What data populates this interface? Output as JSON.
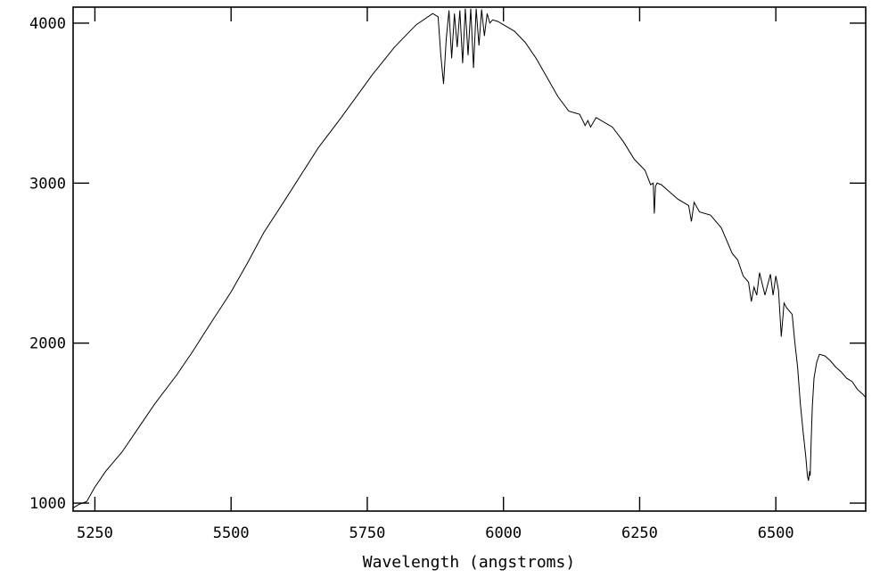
{
  "chart_data": {
    "type": "line",
    "title": "",
    "xlabel": "Wavelength (angstroms)",
    "ylabel": "",
    "xlim": [
      5210,
      6665
    ],
    "ylim": [
      950,
      4100
    ],
    "grid": false,
    "x_ticks": [
      5250,
      5500,
      5750,
      6000,
      6250,
      6500
    ],
    "y_ticks": [
      1000,
      2000,
      3000,
      4000
    ],
    "x_tick_labels": [
      "5250",
      "5500",
      "5750",
      "6000",
      "6250",
      "6500"
    ],
    "y_tick_labels": [
      "1000",
      "2000",
      "3000",
      "4000"
    ],
    "series": [
      {
        "x": [
          5210,
          5220,
          5235,
          5250,
          5270,
          5300,
          5330,
          5360,
          5400,
          5430,
          5460,
          5500,
          5530,
          5560,
          5600,
          5630,
          5660,
          5700,
          5730,
          5760,
          5800,
          5840,
          5870,
          5880,
          5885,
          5890,
          5895,
          5900,
          5905,
          5910,
          5915,
          5920,
          5925,
          5930,
          5935,
          5940,
          5945,
          5950,
          5955,
          5960,
          5965,
          5970,
          5975,
          5980,
          5990,
          6000,
          6020,
          6040,
          6060,
          6080,
          6100,
          6120,
          6140,
          6150,
          6155,
          6160,
          6170,
          6200,
          6220,
          6240,
          6260,
          6270,
          6275,
          6277,
          6279,
          6282,
          6290,
          6300,
          6320,
          6340,
          6345,
          6350,
          6360,
          6380,
          6400,
          6420,
          6430,
          6440,
          6450,
          6455,
          6460,
          6465,
          6470,
          6480,
          6490,
          6495,
          6500,
          6505,
          6510,
          6515,
          6520,
          6530,
          6535,
          6540,
          6545,
          6550,
          6555,
          6558,
          6560,
          6562,
          6563,
          6565,
          6567,
          6570,
          6575,
          6580,
          6590,
          6600,
          6610,
          6620,
          6630,
          6640,
          6650,
          6660,
          6665
        ],
        "y": [
          970,
          990,
          1010,
          1100,
          1200,
          1320,
          1470,
          1620,
          1800,
          1950,
          2110,
          2320,
          2500,
          2690,
          2900,
          3060,
          3220,
          3400,
          3540,
          3680,
          3850,
          3990,
          4060,
          4040,
          3800,
          3620,
          3900,
          4080,
          3780,
          4060,
          3850,
          4080,
          3750,
          4090,
          3800,
          4090,
          3720,
          4090,
          3860,
          4085,
          3920,
          4060,
          4000,
          4020,
          4010,
          3990,
          3950,
          3880,
          3780,
          3660,
          3540,
          3450,
          3430,
          3360,
          3390,
          3350,
          3410,
          3350,
          3260,
          3150,
          3080,
          2990,
          3000,
          2810,
          2980,
          3000,
          2990,
          2960,
          2900,
          2860,
          2760,
          2880,
          2820,
          2800,
          2720,
          2560,
          2520,
          2420,
          2380,
          2260,
          2350,
          2300,
          2440,
          2300,
          2430,
          2300,
          2420,
          2330,
          2040,
          2250,
          2220,
          2180,
          2000,
          1850,
          1620,
          1450,
          1290,
          1170,
          1140,
          1200,
          1170,
          1400,
          1600,
          1780,
          1880,
          1930,
          1920,
          1890,
          1850,
          1820,
          1780,
          1760,
          1710,
          1680,
          1660
        ]
      }
    ]
  }
}
